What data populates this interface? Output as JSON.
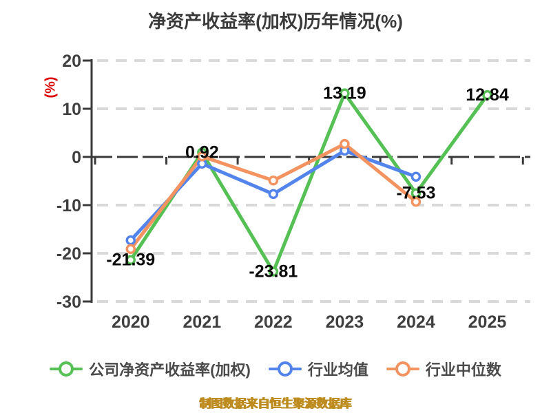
{
  "title": "净资产收益率(加权)历年情况(%)",
  "y_axis_label": {
    "text": "(%)",
    "color": "#dd0000"
  },
  "footer": {
    "text": "制图数据来自恒生聚源数据库",
    "color": "#bd8b1e"
  },
  "chart_data": {
    "type": "line",
    "title": "净资产收益率(加权)历年情况(%)",
    "ylabel": "(%)",
    "categories": [
      "2020",
      "2021",
      "2022",
      "2023",
      "2024",
      "2025"
    ],
    "yticks": [
      20,
      10,
      0,
      -10,
      -20,
      -30
    ],
    "ylim": [
      -30,
      20
    ],
    "grid": "horizontal-dashed",
    "legend_position": "bottom",
    "axis_color": "#3a3a3a",
    "grid_color": "#d9d9d9",
    "tick_label_color": "#3f3f3f",
    "data_label_color": "#0a0a0a",
    "series": [
      {
        "name": "公司净资产收益率(加权)",
        "color": "#55c155",
        "values": [
          -21.39,
          0.92,
          -23.81,
          13.19,
          -7.53,
          12.84
        ],
        "point_labels": [
          "-21.39",
          "0.92",
          "-23.81",
          "13.19",
          "-7.53",
          "12.84"
        ]
      },
      {
        "name": "行业均值",
        "color": "#5384ec",
        "values": [
          -17.3,
          -1.4,
          -7.7,
          1.3,
          -4.1,
          null
        ]
      },
      {
        "name": "行业中位数",
        "color": "#f49360",
        "values": [
          -19.1,
          0.1,
          -4.9,
          2.7,
          -9.3,
          null
        ]
      }
    ]
  }
}
